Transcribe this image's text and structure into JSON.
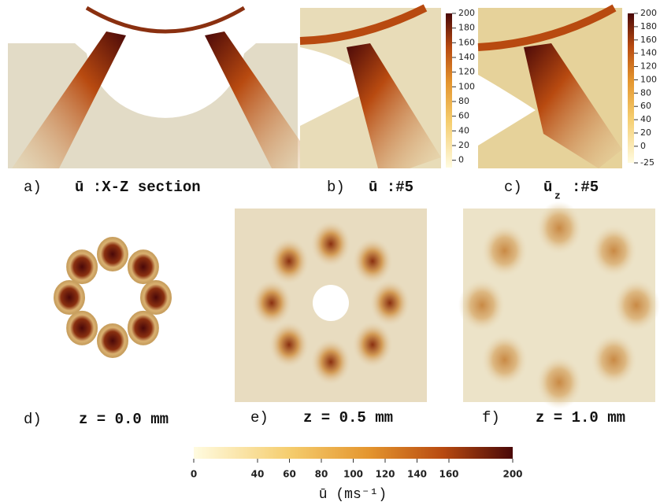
{
  "panels": [
    {
      "label": "a)",
      "caption": "ū :X-Z section"
    },
    {
      "label": "b)",
      "caption": "ū :#5"
    },
    {
      "label": "c)",
      "caption": "ū",
      "subscript": "z",
      "caption_suffix": ":#5"
    },
    {
      "label": "d)",
      "caption": "z = 0.0 mm"
    },
    {
      "label": "e)",
      "caption": "z = 0.5 mm"
    },
    {
      "label": "f)",
      "caption": "z = 1.0 mm"
    }
  ],
  "colorbars": [
    {
      "lim": [
        -10,
        200
      ],
      "ticks": [
        0,
        20,
        40,
        60,
        80,
        100,
        120,
        140,
        160,
        180,
        200
      ]
    },
    {
      "lim": [
        -25,
        200
      ],
      "ticks": [
        -25,
        0,
        20,
        40,
        60,
        80,
        100,
        120,
        140,
        160,
        180,
        200
      ]
    },
    {
      "lim": [
        0,
        200
      ],
      "ticks": [
        0,
        40,
        60,
        80,
        100,
        120,
        140,
        160,
        200
      ],
      "label": "ū (ms⁻¹)"
    }
  ]
}
